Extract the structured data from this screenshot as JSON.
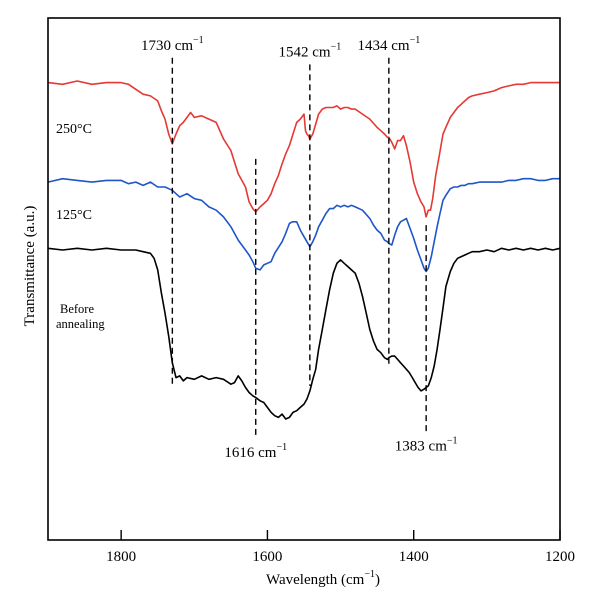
{
  "chart_data": {
    "type": "line",
    "xlabel": "Wavelength (cm",
    "xlabel_sup": "−1",
    "xlabel_tail": ")",
    "ylabel": "Transmittance (a.u.)",
    "xlim": [
      1900,
      1200
    ],
    "x_ticks": [
      1800,
      1600,
      1400,
      1200
    ],
    "x_tick_labels": [
      "1800",
      "1600",
      "1400",
      "1200"
    ],
    "grid": false,
    "series_labels": [
      {
        "id": "s250",
        "text": "250°C"
      },
      {
        "id": "s125",
        "text": "125°C"
      },
      {
        "id": "s0",
        "text": "Before",
        "text2": "annealing"
      }
    ],
    "series": [
      {
        "id": "s250",
        "color": "#e53935",
        "x": [
          1900,
          1880,
          1860,
          1840,
          1820,
          1800,
          1790,
          1780,
          1770,
          1760,
          1750,
          1745,
          1740,
          1735,
          1730,
          1725,
          1720,
          1715,
          1710,
          1705,
          1700,
          1690,
          1680,
          1670,
          1660,
          1650,
          1640,
          1630,
          1625,
          1620,
          1616,
          1610,
          1605,
          1600,
          1595,
          1590,
          1585,
          1580,
          1575,
          1570,
          1565,
          1560,
          1555,
          1550,
          1548,
          1546,
          1544,
          1542,
          1538,
          1534,
          1530,
          1525,
          1520,
          1515,
          1510,
          1505,
          1500,
          1495,
          1490,
          1485,
          1480,
          1470,
          1460,
          1450,
          1445,
          1440,
          1436,
          1434,
          1430,
          1426,
          1422,
          1418,
          1414,
          1410,
          1405,
          1400,
          1395,
          1390,
          1386,
          1383,
          1380,
          1377,
          1374,
          1370,
          1365,
          1360,
          1355,
          1350,
          1345,
          1340,
          1335,
          1330,
          1325,
          1320,
          1310,
          1300,
          1290,
          1280,
          1270,
          1260,
          1250,
          1240,
          1230,
          1220,
          1210,
          1200
        ],
        "y": [
          101,
          100,
          102,
          100,
          101,
          101,
          100,
          97,
          94,
          93,
          90,
          84,
          79,
          70,
          64,
          70,
          75,
          77,
          80,
          83,
          80,
          81,
          79,
          77,
          67,
          60,
          46,
          38,
          29,
          25,
          23,
          26,
          28,
          30,
          34,
          40,
          45,
          52,
          58,
          63,
          70,
          77,
          79,
          82,
          72,
          70,
          69,
          67,
          70,
          76,
          82,
          85,
          86,
          86,
          86,
          87,
          85,
          86,
          86,
          85,
          85,
          82,
          79,
          74,
          72,
          70,
          68,
          68,
          65,
          61,
          66,
          66,
          69,
          63,
          53,
          41,
          34,
          29,
          26,
          20,
          24,
          24,
          31,
          45,
          57,
          70,
          75,
          80,
          83,
          86,
          88,
          90,
          92,
          93,
          94,
          95,
          96,
          98,
          99,
          100,
          100,
          101,
          101,
          101,
          101,
          101
        ]
      },
      {
        "id": "s125",
        "color": "#1e56c8",
        "x": [
          1900,
          1880,
          1860,
          1840,
          1820,
          1800,
          1790,
          1780,
          1770,
          1760,
          1750,
          1740,
          1735,
          1730,
          1725,
          1720,
          1710,
          1700,
          1690,
          1680,
          1670,
          1660,
          1650,
          1640,
          1630,
          1625,
          1620,
          1616,
          1610,
          1605,
          1600,
          1595,
          1590,
          1580,
          1575,
          1570,
          1566,
          1560,
          1555,
          1550,
          1546,
          1542,
          1538,
          1534,
          1530,
          1525,
          1520,
          1515,
          1510,
          1505,
          1500,
          1495,
          1490,
          1485,
          1480,
          1470,
          1460,
          1455,
          1450,
          1445,
          1440,
          1436,
          1434,
          1430,
          1426,
          1422,
          1418,
          1414,
          1410,
          1405,
          1400,
          1395,
          1390,
          1386,
          1383,
          1380,
          1376,
          1372,
          1368,
          1364,
          1360,
          1356,
          1350,
          1345,
          1340,
          1335,
          1330,
          1325,
          1320,
          1310,
          1300,
          1290,
          1280,
          1270,
          1260,
          1250,
          1240,
          1230,
          1220,
          1210,
          1200
        ],
        "y": [
          41,
          43,
          42,
          41,
          42,
          42,
          40,
          41,
          39,
          41,
          38,
          38,
          37,
          36,
          34,
          32,
          34,
          31,
          30,
          26,
          24,
          20,
          14,
          6,
          0,
          -3,
          -7,
          -11,
          -12,
          -9,
          -8,
          -7,
          -2,
          5,
          10,
          16,
          17,
          17,
          12,
          8,
          5,
          2,
          5,
          9,
          14,
          18,
          22,
          25,
          25,
          27,
          26,
          27,
          26,
          27,
          26,
          24,
          19,
          15,
          12,
          10,
          6,
          5,
          4,
          3,
          9,
          14,
          17,
          18,
          19,
          13,
          7,
          0,
          -6,
          -11,
          -13,
          -11,
          -4,
          5,
          14,
          22,
          30,
          33,
          37,
          38,
          38,
          39,
          39,
          40,
          40,
          41,
          41,
          41,
          41,
          42,
          42,
          43,
          43,
          42,
          42,
          43,
          43
        ]
      },
      {
        "id": "s0",
        "color": "#000000",
        "x": [
          1900,
          1880,
          1860,
          1840,
          1820,
          1800,
          1790,
          1780,
          1770,
          1760,
          1755,
          1750,
          1745,
          1740,
          1735,
          1730,
          1725,
          1720,
          1715,
          1710,
          1700,
          1690,
          1680,
          1670,
          1660,
          1650,
          1645,
          1640,
          1635,
          1630,
          1625,
          1620,
          1616,
          1610,
          1605,
          1600,
          1595,
          1590,
          1585,
          1580,
          1575,
          1570,
          1565,
          1560,
          1555,
          1550,
          1546,
          1542,
          1538,
          1534,
          1530,
          1525,
          1520,
          1515,
          1510,
          1505,
          1500,
          1495,
          1490,
          1485,
          1480,
          1475,
          1470,
          1465,
          1460,
          1455,
          1450,
          1445,
          1440,
          1436,
          1434,
          1430,
          1426,
          1422,
          1418,
          1414,
          1410,
          1406,
          1402,
          1398,
          1394,
          1390,
          1386,
          1383,
          1380,
          1376,
          1372,
          1368,
          1364,
          1360,
          1356,
          1350,
          1345,
          1340,
          1335,
          1330,
          1325,
          1320,
          1310,
          1300,
          1290,
          1280,
          1270,
          1260,
          1250,
          1240,
          1230,
          1220,
          1210,
          1200
        ],
        "y": [
          1,
          0,
          1,
          0,
          1,
          0,
          0,
          0,
          -1,
          -2,
          -5,
          -12,
          -26,
          -38,
          -52,
          -68,
          -77,
          -76,
          -79,
          -77,
          -78,
          -76,
          -78,
          -77,
          -78,
          -81,
          -80,
          -76,
          -79,
          -83,
          -86,
          -88,
          -89,
          -91,
          -92,
          -95,
          -98,
          -100,
          -101,
          -99,
          -102,
          -101,
          -98,
          -97,
          -95,
          -93,
          -90,
          -85,
          -78,
          -72,
          -60,
          -48,
          -36,
          -24,
          -14,
          -8,
          -6,
          -8,
          -10,
          -12,
          -14,
          -20,
          -28,
          -38,
          -48,
          -55,
          -60,
          -62,
          -65,
          -66,
          -65,
          -64,
          -64,
          -66,
          -68,
          -70,
          -72,
          -74,
          -77,
          -80,
          -83,
          -85,
          -84,
          -83,
          -82,
          -77,
          -70,
          -60,
          -48,
          -35,
          -22,
          -13,
          -8,
          -5,
          -4,
          -3,
          -2,
          -1,
          -1,
          0,
          -1,
          1,
          0,
          1,
          0,
          1,
          0,
          1,
          0,
          1
        ]
      }
    ],
    "peak_markers": [
      {
        "label": "1730 cm",
        "sup": "−1",
        "x": 1730,
        "y_top": 116,
        "y_bottom": -82,
        "label_pos": "top"
      },
      {
        "label": "1542 cm",
        "sup": "−1",
        "x": 1542,
        "y_top": 112,
        "y_bottom": -82,
        "label_pos": "top"
      },
      {
        "label": "1434 cm",
        "sup": "−1",
        "x": 1434,
        "y_top": 116,
        "y_bottom": -69,
        "label_pos": "top"
      },
      {
        "label": "1616 cm",
        "sup": "−1",
        "x": 1616,
        "y_top": 55,
        "y_bottom": -114,
        "label_pos": "bottom"
      },
      {
        "label": "1383 cm",
        "sup": "−1",
        "x": 1383,
        "y_top": 15,
        "y_bottom": -110,
        "label_pos": "bottom"
      }
    ]
  }
}
